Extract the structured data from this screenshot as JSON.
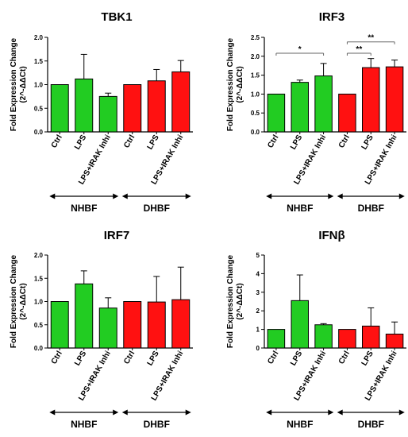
{
  "colors": {
    "group1": "#22cc22",
    "group2": "#ff1111",
    "stroke": "#000000"
  },
  "chart_data": [
    {
      "type": "bar",
      "title": "TBK1",
      "ylabel": "Fold Expression Change (2^-ΔΔCt)",
      "ylim": [
        0,
        2.0
      ],
      "yticks": [
        "0.0",
        "0.5",
        "1.0",
        "1.5",
        "2.0"
      ],
      "categories": [
        "Ctrl",
        "LPS",
        "LPS+IRAK Inhi",
        "Ctrl",
        "LPS",
        "LPS+IRAK Inhi"
      ],
      "values": [
        1.0,
        1.12,
        0.75,
        1.0,
        1.08,
        1.27
      ],
      "errors": [
        0,
        0.52,
        0.07,
        0,
        0.24,
        0.24
      ],
      "groups": [
        {
          "name": "NHBF",
          "start": 0,
          "end": 2
        },
        {
          "name": "DHBF",
          "start": 3,
          "end": 5
        }
      ],
      "significance": []
    },
    {
      "type": "bar",
      "title": "IRF3",
      "ylabel": "Fold Expression Change (2^-ΔΔCt)",
      "ylim": [
        0,
        2.5
      ],
      "yticks": [
        "0.0",
        "0.5",
        "1.0",
        "1.5",
        "2.0",
        "2.5"
      ],
      "categories": [
        "Ctrl",
        "LPS",
        "LPS+IRAK Inhi",
        "Ctrl",
        "LPS",
        "LPS+IRAK Inhi"
      ],
      "values": [
        1.0,
        1.31,
        1.48,
        1.0,
        1.7,
        1.72
      ],
      "errors": [
        0,
        0.06,
        0.33,
        0,
        0.24,
        0.18
      ],
      "groups": [
        {
          "name": "NHBF",
          "start": 0,
          "end": 2
        },
        {
          "name": "DHBF",
          "start": 3,
          "end": 5
        }
      ],
      "significance": [
        {
          "from": 0,
          "to": 2,
          "y": 2.08,
          "label": "*"
        },
        {
          "from": 3,
          "to": 4,
          "y": 2.08,
          "label": "**"
        },
        {
          "from": 3,
          "to": 5,
          "y": 2.38,
          "label": "**"
        }
      ]
    },
    {
      "type": "bar",
      "title": "IRF7",
      "ylabel": "Fold Expression Change (2^-ΔΔCt)",
      "ylim": [
        0,
        2.0
      ],
      "yticks": [
        "0.0",
        "0.5",
        "1.0",
        "1.5",
        "2.0"
      ],
      "categories": [
        "Ctrl",
        "LPS",
        "LPS+IRAK Inhi",
        "Ctrl",
        "LPS",
        "LPS+IRAK Inhi"
      ],
      "values": [
        1.0,
        1.38,
        0.86,
        1.0,
        0.99,
        1.04
      ],
      "errors": [
        0,
        0.28,
        0.22,
        0,
        0.55,
        0.7
      ],
      "groups": [
        {
          "name": "NHBF",
          "start": 0,
          "end": 2
        },
        {
          "name": "DHBF",
          "start": 3,
          "end": 5
        }
      ],
      "significance": []
    },
    {
      "type": "bar",
      "title": "IFNβ",
      "ylabel": "Fold Expression Change (2^-ΔΔCt)",
      "ylim": [
        0,
        5
      ],
      "yticks": [
        "0",
        "1",
        "2",
        "3",
        "4",
        "5"
      ],
      "categories": [
        "Ctrl",
        "LPS",
        "LPS+IRAK Inhi",
        "Ctrl",
        "LPS",
        "LPS+IRAK Inhi"
      ],
      "values": [
        1.0,
        2.55,
        1.25,
        1.0,
        1.18,
        0.75
      ],
      "errors": [
        0,
        1.38,
        0.06,
        0,
        0.98,
        0.65
      ],
      "groups": [
        {
          "name": "NHBF",
          "start": 0,
          "end": 2
        },
        {
          "name": "DHBF",
          "start": 3,
          "end": 5
        }
      ],
      "significance": []
    }
  ]
}
